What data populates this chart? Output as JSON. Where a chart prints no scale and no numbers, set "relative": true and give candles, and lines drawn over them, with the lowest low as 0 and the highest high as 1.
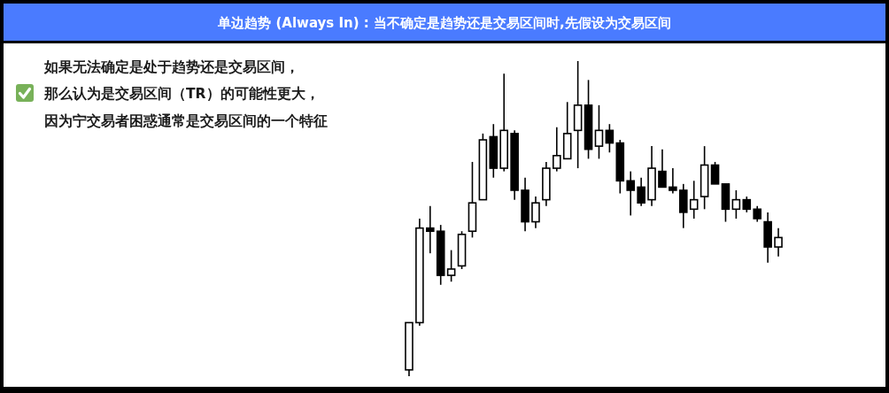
{
  "chart_data": {
    "type": "candlestick",
    "title": "单边趋势 (Always In) : 当不确定是趋势还是交易区间时,先假设为交易区间",
    "annotations": [
      "如果无法确定是处于趋势还是交易区间，",
      "那么认为是交易区间（TR）的可能性更大，",
      "因为宁交易者困惑通常是交易区间的一个特征"
    ],
    "relative": true,
    "color": "#000000",
    "categories": [
      null,
      null,
      null,
      null,
      null,
      null,
      null,
      null,
      null,
      null,
      null,
      null,
      null,
      null,
      null,
      null,
      null,
      null,
      null,
      null,
      null,
      null,
      null,
      null,
      null,
      null,
      null,
      null,
      null,
      null,
      null,
      null,
      null,
      null,
      null,
      null
    ],
    "ohlc": [
      [
        0.02,
        0.17,
        0,
        0.17
      ],
      [
        0.17,
        0.5,
        0.16,
        0.47
      ],
      [
        0.47,
        0.54,
        0.39,
        0.46
      ],
      [
        0.46,
        0.48,
        0.29,
        0.32
      ],
      [
        0.32,
        0.4,
        0.3,
        0.34
      ],
      [
        0.35,
        0.46,
        0.34,
        0.45
      ],
      [
        0.46,
        0.68,
        0.44,
        0.55
      ],
      [
        0.56,
        0.77,
        0.56,
        0.75
      ],
      [
        0.76,
        0.8,
        0.63,
        0.66
      ],
      [
        0.66,
        0.96,
        0.65,
        0.78
      ],
      [
        0.77,
        0.78,
        0.56,
        0.59
      ],
      [
        0.59,
        0.63,
        0.46,
        0.49
      ],
      [
        0.49,
        0.57,
        0.47,
        0.55
      ],
      [
        0.56,
        0.68,
        0.54,
        0.66
      ],
      [
        0.66,
        0.79,
        0.65,
        0.7
      ],
      [
        0.69,
        0.87,
        0.69,
        0.77
      ],
      [
        0.78,
        1,
        0.66,
        0.86
      ],
      [
        0.86,
        0.94,
        0.69,
        0.72
      ],
      [
        0.73,
        0.86,
        0.69,
        0.78
      ],
      [
        0.78,
        0.8,
        0.71,
        0.74
      ],
      [
        0.74,
        0.75,
        0.58,
        0.62
      ],
      [
        0.62,
        0.65,
        0.51,
        0.59
      ],
      [
        0.6,
        0.63,
        0.54,
        0.55
      ],
      [
        0.56,
        0.73,
        0.54,
        0.66
      ],
      [
        0.65,
        0.72,
        0.6,
        0.6
      ],
      [
        0.6,
        0.66,
        0.58,
        0.59
      ],
      [
        0.59,
        0.61,
        0.47,
        0.52
      ],
      [
        0.53,
        0.62,
        0.5,
        0.56
      ],
      [
        0.57,
        0.73,
        0.53,
        0.67
      ],
      [
        0.67,
        0.68,
        0.61,
        0.61
      ],
      [
        0.61,
        0.61,
        0.49,
        0.53
      ],
      [
        0.53,
        0.59,
        0.5,
        0.56
      ],
      [
        0.56,
        0.57,
        0.52,
        0.53
      ],
      [
        0.53,
        0.54,
        0.49,
        0.5
      ],
      [
        0.49,
        0.52,
        0.36,
        0.41
      ],
      [
        0.41,
        0.47,
        0.38,
        0.44
      ]
    ]
  }
}
